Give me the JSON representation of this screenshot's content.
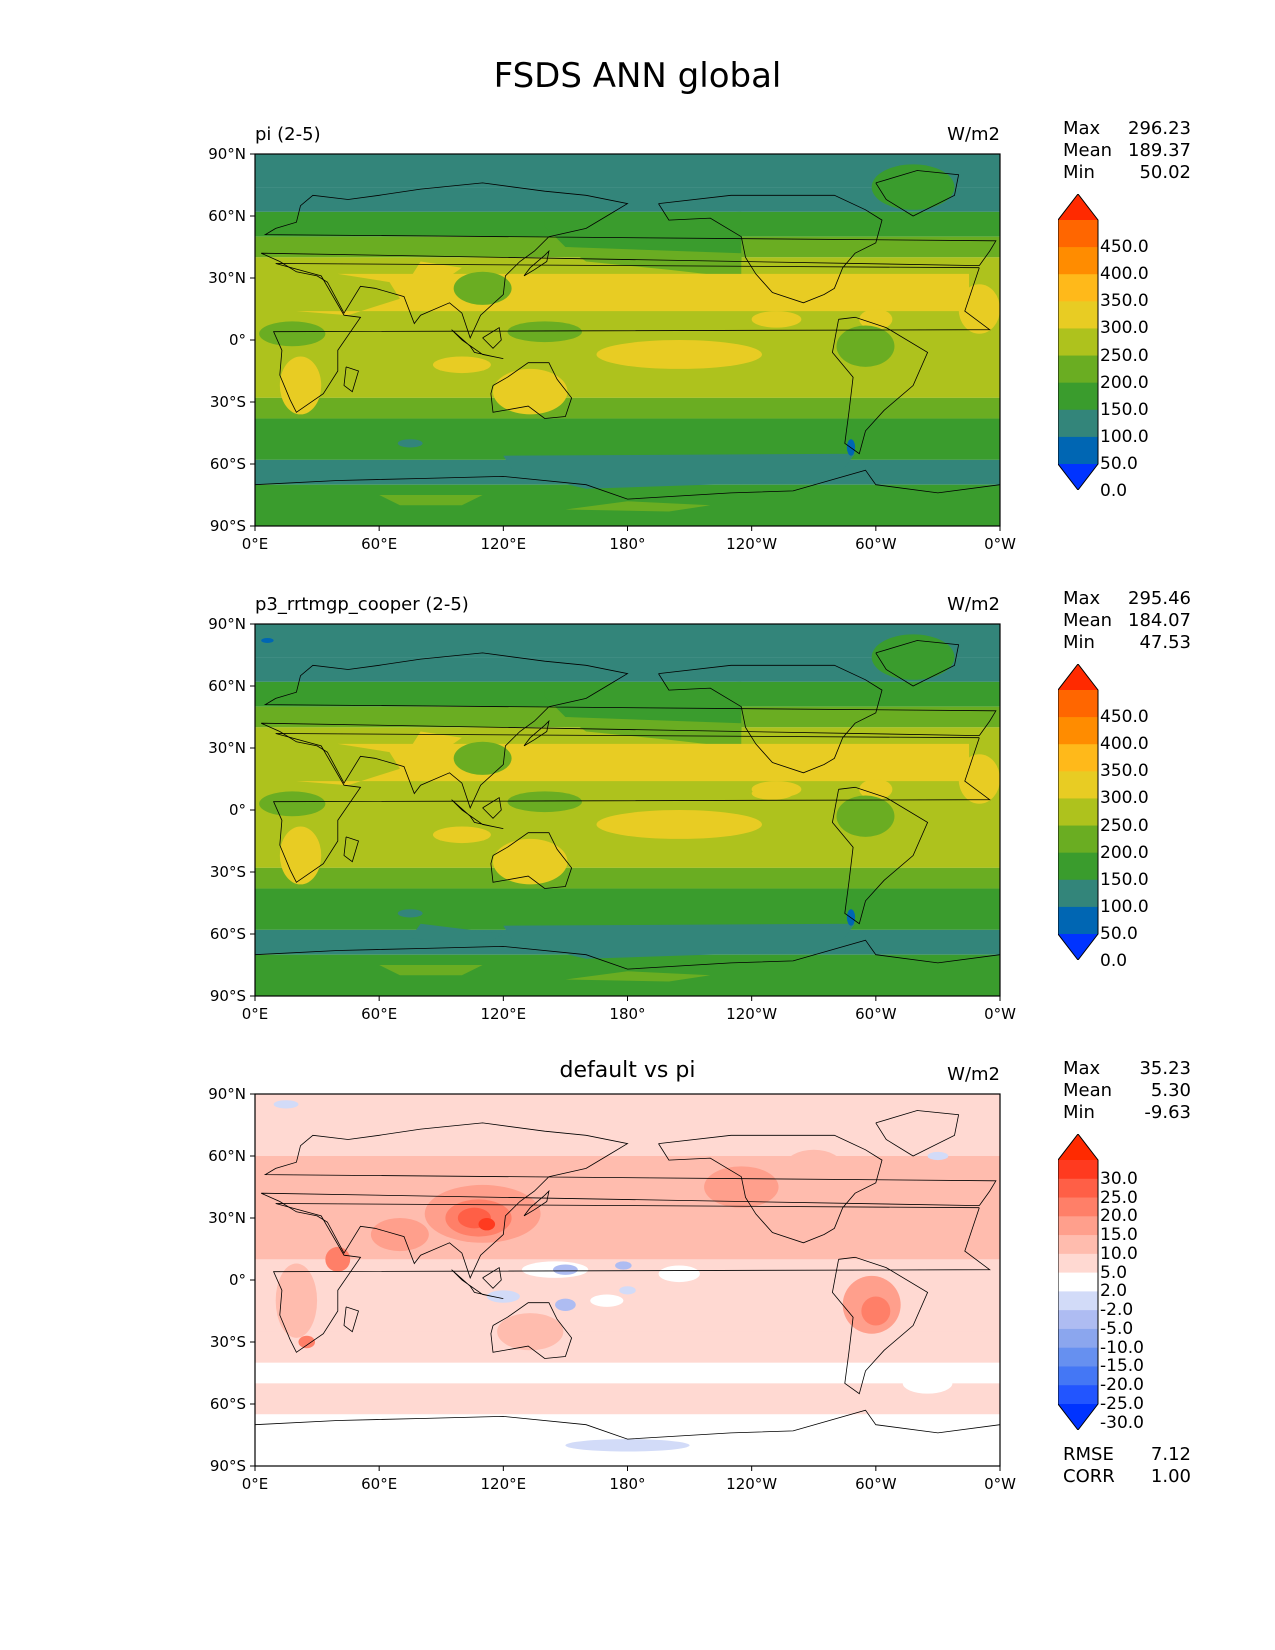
{
  "figure": {
    "title": "FSDS ANN global"
  },
  "colors": {
    "levels": [
      "#0033ff",
      "#0066b3",
      "#33857a",
      "#3a9c2d",
      "#6aad22",
      "#aec21d",
      "#e8cc23",
      "#ffb91a",
      "#ff8c00",
      "#ff6600",
      "#ff2a00"
    ],
    "diff": [
      "#0033ff",
      "#2255ff",
      "#4477f5",
      "#6690f0",
      "#8ba6ee",
      "#aebcf2",
      "#d2dbf8",
      "#ffffff",
      "#ffd9d2",
      "#ffbcae",
      "#ff9f8c",
      "#ff7f68",
      "#ff5f46",
      "#ff3a1f",
      "#ff2a00"
    ],
    "coast": "#000000"
  },
  "panels": [
    {
      "title": "pi (2-5)",
      "units": "W/m2",
      "stats": {
        "max_label": "Max",
        "max": "296.23",
        "mean_label": "Mean",
        "mean": "189.37",
        "min_label": "Min",
        "min": "50.02"
      },
      "colorbar_labels": [
        "450.0",
        "400.0",
        "350.0",
        "300.0",
        "250.0",
        "200.0",
        "150.0",
        "100.0",
        "50.0",
        "0.0"
      ]
    },
    {
      "title": "p3_rrtmgp_cooper (2-5)",
      "units": "W/m2",
      "stats": {
        "max_label": "Max",
        "max": "295.46",
        "mean_label": "Mean",
        "mean": "184.07",
        "min_label": "Min",
        "min": "47.53"
      },
      "colorbar_labels": [
        "450.0",
        "400.0",
        "350.0",
        "300.0",
        "250.0",
        "200.0",
        "150.0",
        "100.0",
        "50.0",
        "0.0"
      ]
    },
    {
      "title": "default vs pi",
      "units": "W/m2",
      "stats": {
        "max_label": "Max",
        "max": "35.23",
        "mean_label": "Mean",
        "mean": "5.30",
        "min_label": "Min",
        "min": "-9.63"
      },
      "colorbar_labels": [
        "30.0",
        "25.0",
        "20.0",
        "15.0",
        "10.0",
        "5.0",
        "2.0",
        "-2.0",
        "-5.0",
        "-10.0",
        "-15.0",
        "-20.0",
        "-25.0",
        "-30.0"
      ],
      "rmse_label": "RMSE",
      "rmse": "7.12",
      "corr_label": "CORR",
      "corr": "1.00"
    }
  ],
  "axes": {
    "x_ticks": [
      "0°E",
      "60°E",
      "120°E",
      "180°",
      "120°W",
      "60°W",
      "0°W"
    ],
    "y_ticks": [
      "90°N",
      "60°N",
      "30°N",
      "0°",
      "30°S",
      "60°S",
      "90°S"
    ]
  },
  "chart_data": [
    {
      "type": "heatmap",
      "title": "pi (2-5)",
      "units": "W/m2",
      "x_range": [
        0,
        360
      ],
      "y_range": [
        -90,
        90
      ],
      "levels": [
        0,
        50,
        100,
        150,
        200,
        250,
        300,
        350,
        400,
        450
      ],
      "max": 296.23,
      "mean": 189.37,
      "min": 50.02
    },
    {
      "type": "heatmap",
      "title": "p3_rrtmgp_cooper (2-5)",
      "units": "W/m2",
      "x_range": [
        0,
        360
      ],
      "y_range": [
        -90,
        90
      ],
      "levels": [
        0,
        50,
        100,
        150,
        200,
        250,
        300,
        350,
        400,
        450
      ],
      "max": 295.46,
      "mean": 184.07,
      "min": 47.53
    },
    {
      "type": "heatmap",
      "title": "default vs pi",
      "units": "W/m2",
      "x_range": [
        0,
        360
      ],
      "y_range": [
        -90,
        90
      ],
      "levels": [
        -30,
        -25,
        -20,
        -15,
        -10,
        -5,
        -2,
        2,
        5,
        10,
        15,
        20,
        25,
        30
      ],
      "max": 35.23,
      "mean": 5.3,
      "min": -9.63,
      "rmse": 7.12,
      "corr": 1.0
    }
  ]
}
